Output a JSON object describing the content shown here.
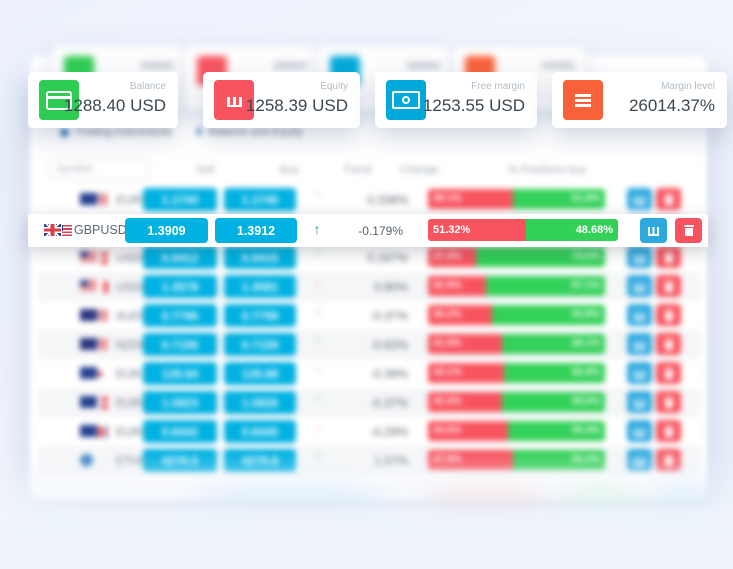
{
  "cards": [
    {
      "label": "Balance",
      "value": "1288.40 USD",
      "icon": "credit-card-icon",
      "color": "#2ecc52"
    },
    {
      "label": "Equity",
      "value": "1258.39 USD",
      "icon": "bar-chart-icon",
      "color": "#f8545f"
    },
    {
      "label": "Free margin",
      "value": "1253.55 USD",
      "icon": "banknote-icon",
      "color": "#00a9da"
    },
    {
      "label": "Margin level",
      "value": "26014.37%",
      "icon": "menu-icon",
      "color": "#f96138"
    }
  ],
  "tabs": [
    {
      "label": "Trading instruments",
      "icon": "dot-icon"
    },
    {
      "label": "Balance and Equity",
      "icon": "dollar-icon",
      "icon_char": "$"
    }
  ],
  "table": {
    "filter_placeholder": "Symbol",
    "headers": [
      "Sell",
      "Buy",
      "Trend",
      "Change",
      "% Positions buy"
    ],
    "focused_row": {
      "symbol": "GBPUSD",
      "flags": [
        "gb",
        "us"
      ],
      "sell": "1.3909",
      "buy": "1.3912",
      "trend": "up",
      "change": "-0.179%",
      "positions_sell_pct": "51.32%",
      "positions_buy_pct": "48.68%",
      "positions_sell_num": 51.32,
      "positions_buy_num": 48.68
    },
    "rows": [
      {
        "symbol": "EURUSD",
        "flags": [
          "eu",
          "us"
        ],
        "sell": "1.1743",
        "buy": "1.1745",
        "trend": "up",
        "change": "0.338%",
        "sell_pct": "48.1%",
        "buy_pct": "51.9%",
        "sell_num": 48
      },
      {
        "symbol": "USDJPY",
        "flags": [
          "us",
          "jp"
        ],
        "sell": "147.65",
        "buy": "147.68",
        "trend": "down",
        "change": "1.46%",
        "sell_pct": "40.1%",
        "buy_pct": "59.9%",
        "sell_num": 40
      },
      {
        "symbol": "USDCHF",
        "flags": [
          "us",
          "ch"
        ],
        "sell": "0.9412",
        "buy": "0.9415",
        "trend": "up",
        "change": "0.167%",
        "sell_pct": "27.0%",
        "buy_pct": "73.0%",
        "sell_num": 27
      },
      {
        "symbol": "USDCAD",
        "flags": [
          "us",
          "ca"
        ],
        "sell": "1.3578",
        "buy": "1.3581",
        "trend": "down",
        "change": "0.80%",
        "sell_pct": "32.9%",
        "buy_pct": "67.1%",
        "sell_num": 33
      },
      {
        "symbol": "AUDUSD",
        "flags": [
          "au",
          "us"
        ],
        "sell": "0.7796",
        "buy": "0.7799",
        "trend": "down",
        "change": "-0.37%",
        "sell_pct": "36.2%",
        "buy_pct": "63.8%",
        "sell_num": 36
      },
      {
        "symbol": "NZDUSD",
        "flags": [
          "nz",
          "us"
        ],
        "sell": "0.7156",
        "buy": "0.7159",
        "trend": "up",
        "change": "-0.82%",
        "sell_pct": "41.9%",
        "buy_pct": "58.1%",
        "sell_num": 42
      },
      {
        "symbol": "EURJPY",
        "flags": [
          "eu",
          "jp"
        ],
        "sell": "129.84",
        "buy": "129.88",
        "trend": "down",
        "change": "-0.39%",
        "sell_pct": "43.1%",
        "buy_pct": "56.9%",
        "sell_num": 43
      },
      {
        "symbol": "EURCHF",
        "flags": [
          "eu",
          "ch"
        ],
        "sell": "1.0823",
        "buy": "1.0826",
        "trend": "up",
        "change": "-0.37%",
        "sell_pct": "42.0%",
        "buy_pct": "58.0%",
        "sell_num": 42
      },
      {
        "symbol": "EURGBP",
        "flags": [
          "eu",
          "gb"
        ],
        "sell": "0.8442",
        "buy": "0.8445",
        "trend": "down",
        "change": "-0.29%",
        "sell_pct": "44.6%",
        "buy_pct": "55.4%",
        "sell_num": 45
      },
      {
        "symbol": "ETHUSD",
        "flags": [
          "crypto"
        ],
        "sell": "4276.5",
        "buy": "4279.8",
        "trend": "up",
        "change": "1.07%",
        "sell_pct": "47.9%",
        "buy_pct": "52.1%",
        "sell_num": 48
      }
    ]
  },
  "colors": {
    "buy_sell_button": "#00b1e1",
    "sentiment_sell": "#f8545f",
    "sentiment_buy": "#33d159",
    "chart_button": "#2ea9e0",
    "delete_button": "#f8545f",
    "trend_up": "#21a45d",
    "trend_down": "#e0454e"
  }
}
